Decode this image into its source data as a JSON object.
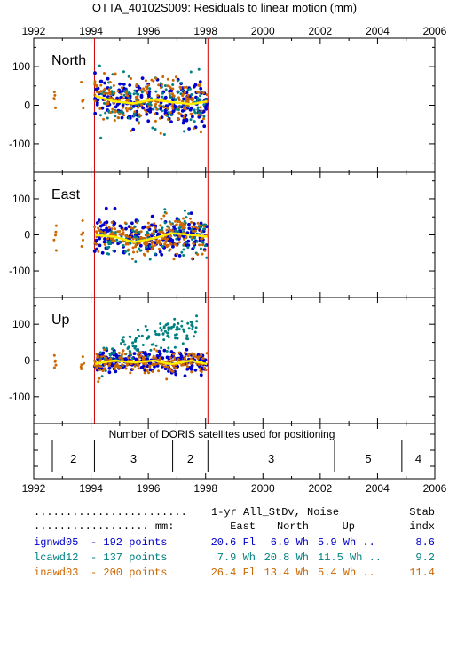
{
  "title": "OTTA_40102S009: Residuals to linear motion (mm)",
  "colors": {
    "ignwd05": "#0000cc",
    "lcawd12": "#008080",
    "inawd03": "#cc6600",
    "mean": "#ffee00",
    "event_line": "#cc0000",
    "axis": "#000000"
  },
  "chart_data": [
    {
      "type": "scatter",
      "panel": "North",
      "xlim": [
        1992,
        2006
      ],
      "ylim": [
        -160,
        160
      ],
      "x_ticks": [
        "1992",
        "1994",
        "1996",
        "1998",
        "2000",
        "2002",
        "2004",
        "2006"
      ],
      "y_ticks": [
        "100",
        "0",
        "-100"
      ],
      "vlines": [
        1994.12,
        1998.08
      ],
      "series": [
        {
          "name": "ignwd05",
          "spread": 28,
          "start": 1994.1,
          "end": 1998.05,
          "count": 192
        },
        {
          "name": "lcawd12",
          "spread": 30,
          "start": 1994.3,
          "end": 1998.05,
          "count": 137
        },
        {
          "name": "inawd03",
          "spread": 30,
          "start": 1992.7,
          "end": 1998.05,
          "count": 200
        }
      ],
      "mean_curve": [
        [
          1994.1,
          25
        ],
        [
          1994.8,
          10
        ],
        [
          1995.5,
          5
        ],
        [
          1996.2,
          15
        ],
        [
          1996.8,
          8
        ],
        [
          1997.5,
          3
        ],
        [
          1998.05,
          10
        ]
      ]
    },
    {
      "type": "scatter",
      "panel": "East",
      "xlim": [
        1992,
        2006
      ],
      "ylim": [
        -160,
        160
      ],
      "x_ticks": [],
      "y_ticks": [
        "100",
        "0",
        "-100"
      ],
      "vlines": [
        1994.12,
        1998.08
      ],
      "series": [
        {
          "name": "ignwd05",
          "spread": 25,
          "start": 1994.1,
          "end": 1998.05,
          "count": 192
        },
        {
          "name": "lcawd12",
          "spread": 28,
          "start": 1994.3,
          "end": 1998.05,
          "count": 137
        },
        {
          "name": "inawd03",
          "spread": 25,
          "start": 1992.7,
          "end": 1998.05,
          "count": 200
        }
      ],
      "mean_curve": [
        [
          1994.1,
          0
        ],
        [
          1994.8,
          -5
        ],
        [
          1995.5,
          -20
        ],
        [
          1996.2,
          -10
        ],
        [
          1996.8,
          5
        ],
        [
          1997.5,
          0
        ],
        [
          1998.05,
          -5
        ]
      ]
    },
    {
      "type": "scatter",
      "panel": "Up",
      "xlim": [
        1992,
        2006
      ],
      "ylim": [
        -160,
        160
      ],
      "x_ticks": [],
      "y_ticks": [
        "100",
        "0",
        "-100"
      ],
      "vlines": [
        1994.12,
        1998.08
      ],
      "series": [
        {
          "name": "ignwd05",
          "spread": 15,
          "start": 1994.1,
          "end": 1998.05,
          "count": 192
        },
        {
          "name": "lcawd12",
          "spread": 20,
          "start": 1994.3,
          "end": 1997.7,
          "count": 137
        },
        {
          "name": "inawd03",
          "spread": 15,
          "start": 1992.7,
          "end": 1998.05,
          "count": 200
        }
      ],
      "lcawd12_trend": [
        [
          1994.3,
          0
        ],
        [
          1995.0,
          20
        ],
        [
          1995.8,
          45
        ],
        [
          1996.5,
          75
        ],
        [
          1997.0,
          85
        ],
        [
          1997.7,
          80
        ]
      ],
      "mean_curve": [
        [
          1994.1,
          -10
        ],
        [
          1994.8,
          0
        ],
        [
          1995.5,
          -5
        ],
        [
          1996.2,
          0
        ],
        [
          1996.8,
          -10
        ],
        [
          1997.5,
          0
        ],
        [
          1998.05,
          -10
        ]
      ]
    },
    {
      "type": "table",
      "panel": "satellites",
      "label": "Number of DORIS satellites used for positioning",
      "xlim": [
        1992,
        2006
      ],
      "x_ticks": [
        "1992",
        "1994",
        "1996",
        "1998",
        "2000",
        "2002",
        "2004",
        "2006"
      ],
      "segments": [
        {
          "start": 1992.65,
          "end": 1994.12,
          "value": "2"
        },
        {
          "start": 1994.12,
          "end": 1996.85,
          "value": "3"
        },
        {
          "start": 1996.85,
          "end": 1998.08,
          "value": "2"
        },
        {
          "start": 1998.08,
          "end": 2002.5,
          "value": "3"
        },
        {
          "start": 2002.5,
          "end": 2004.85,
          "value": "5"
        },
        {
          "start": 2004.85,
          "end": 2006,
          "value": "4"
        }
      ]
    }
  ],
  "stats": {
    "header1": {
      "dots": "........................",
      "cols": "1-yr All_StDv, Noise",
      "stab": "Stab"
    },
    "header2": {
      "dots": ".................. mm:",
      "east": "East",
      "north": "North",
      "up": "Up",
      "indx": "indx"
    },
    "rows": [
      {
        "name": "ignwd05",
        "points": "- 192 points",
        "east": "20.6 Fl",
        "north": "6.9 Wh",
        "up": "5.9 Wh ..",
        "stab": "8.6",
        "color": "#0000cc"
      },
      {
        "name": "lcawd12",
        "points": "- 137 points",
        "east": "7.9 Wh",
        "north": "20.8 Wh",
        "up": "11.5 Wh ..",
        "stab": "9.2",
        "color": "#008080"
      },
      {
        "name": "inawd03",
        "points": "- 200 points",
        "east": "26.4 Fl",
        "north": "13.4 Wh",
        "up": "5.4 Wh ..",
        "stab": "11.4",
        "color": "#cc6600"
      }
    ]
  }
}
